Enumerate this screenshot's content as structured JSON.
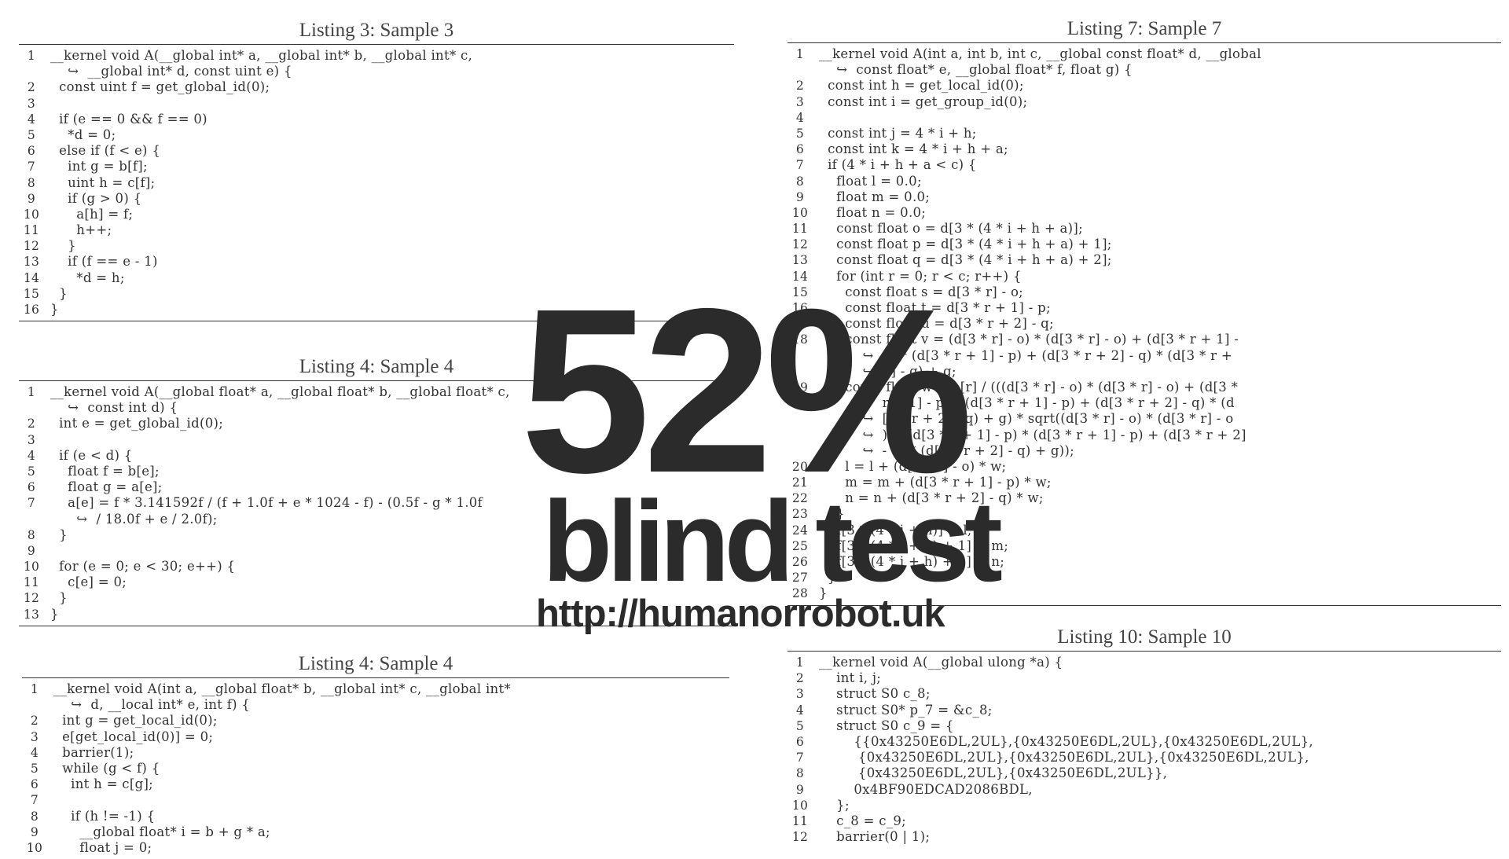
{
  "listings": {
    "listing3": {
      "caption": "Listing 3: Sample 3",
      "lines": [
        {
          "n": "1",
          "t": "__kernel void A(__global int* a, __global int* b, __global int* c,"
        },
        {
          "n": "",
          "t": "    ↪  __global int* d, const uint e) {"
        },
        {
          "n": "2",
          "t": "  const uint f = get_global_id(0);"
        },
        {
          "n": "3",
          "t": ""
        },
        {
          "n": "4",
          "t": "  if (e == 0 && f == 0)"
        },
        {
          "n": "5",
          "t": "    *d = 0;"
        },
        {
          "n": "6",
          "t": "  else if (f < e) {"
        },
        {
          "n": "7",
          "t": "    int g = b[f];"
        },
        {
          "n": "8",
          "t": "    uint h = c[f];"
        },
        {
          "n": "9",
          "t": "    if (g > 0) {"
        },
        {
          "n": "10",
          "t": "      a[h] = f;"
        },
        {
          "n": "11",
          "t": "      h++;"
        },
        {
          "n": "12",
          "t": "    }"
        },
        {
          "n": "13",
          "t": "    if (f == e - 1)"
        },
        {
          "n": "14",
          "t": "      *d = h;"
        },
        {
          "n": "15",
          "t": "  }"
        },
        {
          "n": "16",
          "t": "}"
        }
      ]
    },
    "listing4a": {
      "caption": "Listing 4: Sample 4",
      "lines": [
        {
          "n": "1",
          "t": "__kernel void A(__global float* a, __global float* b, __global float* c,"
        },
        {
          "n": "",
          "t": "    ↪  const int d) {"
        },
        {
          "n": "2",
          "t": "  int e = get_global_id(0);"
        },
        {
          "n": "3",
          "t": ""
        },
        {
          "n": "4",
          "t": "  if (e < d) {"
        },
        {
          "n": "5",
          "t": "    float f = b[e];"
        },
        {
          "n": "6",
          "t": "    float g = a[e];"
        },
        {
          "n": "7",
          "t": "    a[e] = f * 3.141592f / (f + 1.0f + e * 1024 - f) - (0.5f - g * 1.0f"
        },
        {
          "n": "",
          "t": "      ↪  / 18.0f + e / 2.0f);"
        },
        {
          "n": "8",
          "t": "  }"
        },
        {
          "n": "9",
          "t": ""
        },
        {
          "n": "10",
          "t": "  for (e = 0; e < 30; e++) {"
        },
        {
          "n": "11",
          "t": "    c[e] = 0;"
        },
        {
          "n": "12",
          "t": "  }"
        },
        {
          "n": "13",
          "t": "}"
        }
      ]
    },
    "listing4b": {
      "caption": "Listing 4: Sample 4",
      "lines": [
        {
          "n": "1",
          "t": "__kernel void A(int a, __global float* b, __global int* c, __global int*"
        },
        {
          "n": "",
          "t": "    ↪  d, __local int* e, int f) {"
        },
        {
          "n": "2",
          "t": "  int g = get_local_id(0);"
        },
        {
          "n": "3",
          "t": "  e[get_local_id(0)] = 0;"
        },
        {
          "n": "4",
          "t": "  barrier(1);"
        },
        {
          "n": "5",
          "t": "  while (g < f) {"
        },
        {
          "n": "6",
          "t": "    int h = c[g];"
        },
        {
          "n": "7",
          "t": ""
        },
        {
          "n": "8",
          "t": "    if (h != -1) {"
        },
        {
          "n": "9",
          "t": "      __global float* i = b + g * a;"
        },
        {
          "n": "10",
          "t": "      float j = 0;"
        }
      ]
    },
    "listing7": {
      "caption": "Listing 7: Sample 7",
      "lines": [
        {
          "n": "1",
          "t": "__kernel void A(int a, int b, int c, __global const float* d, __global"
        },
        {
          "n": "",
          "t": "    ↪  const float* e, __global float* f, float g) {"
        },
        {
          "n": "2",
          "t": "  const int h = get_local_id(0);"
        },
        {
          "n": "3",
          "t": "  const int i = get_group_id(0);"
        },
        {
          "n": "4",
          "t": ""
        },
        {
          "n": "5",
          "t": "  const int j = 4 * i + h;"
        },
        {
          "n": "6",
          "t": "  const int k = 4 * i + h + a;"
        },
        {
          "n": "7",
          "t": "  if (4 * i + h + a < c) {"
        },
        {
          "n": "8",
          "t": "    float l = 0.0;"
        },
        {
          "n": "9",
          "t": "    float m = 0.0;"
        },
        {
          "n": "10",
          "t": "    float n = 0.0;"
        },
        {
          "n": "11",
          "t": "    const float o = d[3 * (4 * i + h + a)];"
        },
        {
          "n": "12",
          "t": "    const float p = d[3 * (4 * i + h + a) + 1];"
        },
        {
          "n": "13",
          "t": "    const float q = d[3 * (4 * i + h + a) + 2];"
        },
        {
          "n": "14",
          "t": "    for (int r = 0; r < c; r++) {"
        },
        {
          "n": "15",
          "t": "      const float s = d[3 * r] - o;"
        },
        {
          "n": "16",
          "t": "      const float t = d[3 * r + 1] - p;"
        },
        {
          "n": "17",
          "t": "      const float u = d[3 * r + 2] - q;"
        },
        {
          "n": "18",
          "t": "      const float v = (d[3 * r] - o) * (d[3 * r] - o) + (d[3 * r + 1] -"
        },
        {
          "n": "",
          "t": "          ↪  p) * (d[3 * r + 1] - p) + (d[3 * r + 2] - q) * (d[3 * r +"
        },
        {
          "n": "",
          "t": "          ↪  2] - q) + g;"
        },
        {
          "n": "19",
          "t": "      const float w = e[r] / (((d[3 * r] - o) * (d[3 * r] - o) + (d[3 *"
        },
        {
          "n": "",
          "t": "          ↪  r + 1] - p) * (d[3 * r + 1] - p) + (d[3 * r + 2] - q) * (d"
        },
        {
          "n": "",
          "t": "          ↪  [3 * r + 2] - q) + g) * sqrt((d[3 * r] - o) * (d[3 * r] - o"
        },
        {
          "n": "",
          "t": "          ↪  ) + (d[3 * r + 1] - p) * (d[3 * r + 1] - p) + (d[3 * r + 2]"
        },
        {
          "n": "",
          "t": "          ↪  - q) * (d[3 * r + 2] - q) + g));"
        },
        {
          "n": "20",
          "t": "      l = l + (d[3 * r] - o) * w;"
        },
        {
          "n": "21",
          "t": "      m = m + (d[3 * r + 1] - p) * w;"
        },
        {
          "n": "22",
          "t": "      n = n + (d[3 * r + 2] - q) * w;"
        },
        {
          "n": "23",
          "t": "    }"
        },
        {
          "n": "24",
          "t": "    f[3 * (4 * i + h)] = l;"
        },
        {
          "n": "25",
          "t": "    f[3 * (4 * i + h) + 1] = m;"
        },
        {
          "n": "26",
          "t": "    f[3 * (4 * i + h) + 2] = n;"
        },
        {
          "n": "27",
          "t": "  }"
        },
        {
          "n": "28",
          "t": "}"
        }
      ]
    },
    "listing10": {
      "caption": "Listing 10: Sample 10",
      "lines": [
        {
          "n": "1",
          "t": "__kernel void A(__global ulong *a) {"
        },
        {
          "n": "2",
          "t": "    int i, j;"
        },
        {
          "n": "3",
          "t": "    struct S0 c_8;"
        },
        {
          "n": "4",
          "t": "    struct S0* p_7 = &c_8;"
        },
        {
          "n": "5",
          "t": "    struct S0 c_9 = {"
        },
        {
          "n": "6",
          "t": "        {{0x43250E6DL,2UL},{0x43250E6DL,2UL},{0x43250E6DL,2UL},"
        },
        {
          "n": "7",
          "t": "         {0x43250E6DL,2UL},{0x43250E6DL,2UL},{0x43250E6DL,2UL},"
        },
        {
          "n": "8",
          "t": "         {0x43250E6DL,2UL},{0x43250E6DL,2UL}},"
        },
        {
          "n": "9",
          "t": "        0x4BF90EDCAD2086BDL,"
        },
        {
          "n": "10",
          "t": "    };"
        },
        {
          "n": "11",
          "t": "    c_8 = c_9;"
        },
        {
          "n": "12",
          "t": "    barrier(0 | 1);"
        }
      ]
    }
  },
  "overlay": {
    "percent": "52%",
    "subtitle": "blind test",
    "url": "http://humanorrobot.uk"
  }
}
